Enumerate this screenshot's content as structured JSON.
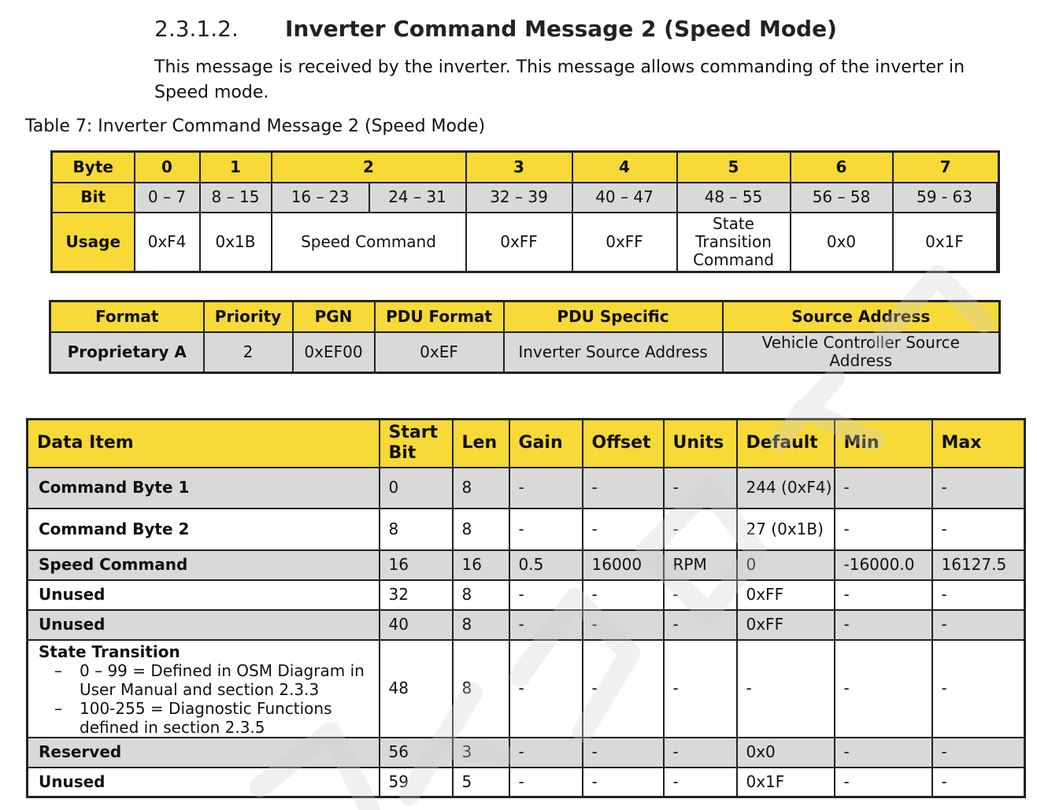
{
  "heading": {
    "number": "2.3.1.2.",
    "title": "Inverter Command Message 2 (Speed Mode)"
  },
  "intro": "This message is received by the inverter. This message allows commanding of the inverter in Speed mode.",
  "caption": "Table 7: Inverter Command Message 2 (Speed Mode)",
  "byte_table": {
    "byte_label": "Byte",
    "bit_label": "Bit",
    "usage_label": "Usage",
    "bytes": [
      "0",
      "1",
      "2",
      "3",
      "4",
      "5",
      "6",
      "7"
    ],
    "bits": [
      "0 – 7",
      "8 – 15",
      "16 – 23",
      "24 – 31",
      "32 – 39",
      "40 – 47",
      "48 – 55",
      "56 – 58",
      "59 - 63"
    ],
    "usage": [
      "0xF4",
      "0x1B",
      "Speed Command",
      "0xFF",
      "0xFF",
      "State Transition Command",
      "0x0",
      "0x1F"
    ]
  },
  "format_table": {
    "headers": [
      "Format",
      "Priority",
      "PGN",
      "PDU Format",
      "PDU Specific",
      "Source Address"
    ],
    "values": [
      "Proprietary A",
      "2",
      "0xEF00",
      "0xEF",
      "Inverter Source Address",
      "Vehicle Controller Source Address"
    ]
  },
  "data_table": {
    "headers": [
      "Data Item",
      "Start Bit",
      "Len",
      "Gain",
      "Offset",
      "Units",
      "Default",
      "Min",
      "Max"
    ],
    "rows": [
      {
        "item": "Command Byte 1",
        "start": "0",
        "len": "8",
        "gain": "-",
        "offset": "-",
        "units": "-",
        "default": "244 (0xF4)",
        "min": "-",
        "max": "-"
      },
      {
        "item": "Command Byte 2",
        "start": "8",
        "len": "8",
        "gain": "-",
        "offset": "-",
        "units": "-",
        "default": "27 (0x1B)",
        "min": "-",
        "max": "-"
      },
      {
        "item": "Speed Command",
        "start": "16",
        "len": "16",
        "gain": "0.5",
        "offset": "16000",
        "units": "RPM",
        "default": "0",
        "min": "-16000.0",
        "max": "16127.5"
      },
      {
        "item": "Unused",
        "start": "32",
        "len": "8",
        "gain": "-",
        "offset": "-",
        "units": "-",
        "default": "0xFF",
        "min": "-",
        "max": "-"
      },
      {
        "item": "Unused",
        "start": "40",
        "len": "8",
        "gain": "-",
        "offset": "-",
        "units": "-",
        "default": "0xFF",
        "min": "-",
        "max": "-"
      },
      {
        "item": "State Transition",
        "sub1": "0 – 99 = Defined in OSM Diagram in User Manual and section 2.3.3",
        "sub2": "100-255 = Diagnostic Functions defined in section 2.3.5",
        "dash": "–",
        "start": "48",
        "len": "8",
        "gain": "-",
        "offset": "-",
        "units": "-",
        "default": "-",
        "min": "-",
        "max": "-"
      },
      {
        "item": "Reserved",
        "start": "56",
        "len": "3",
        "gain": "-",
        "offset": "-",
        "units": "-",
        "default": "0x0",
        "min": "-",
        "max": "-"
      },
      {
        "item": "Unused",
        "start": "59",
        "len": "5",
        "gain": "-",
        "offset": "-",
        "units": "-",
        "default": "0x1F",
        "min": "-",
        "max": "-"
      }
    ]
  },
  "colors": {
    "header_yellow": "#f7d937",
    "row_gray": "#d9d9d9",
    "border": "#222222",
    "watermark": "#dcdcdc"
  }
}
